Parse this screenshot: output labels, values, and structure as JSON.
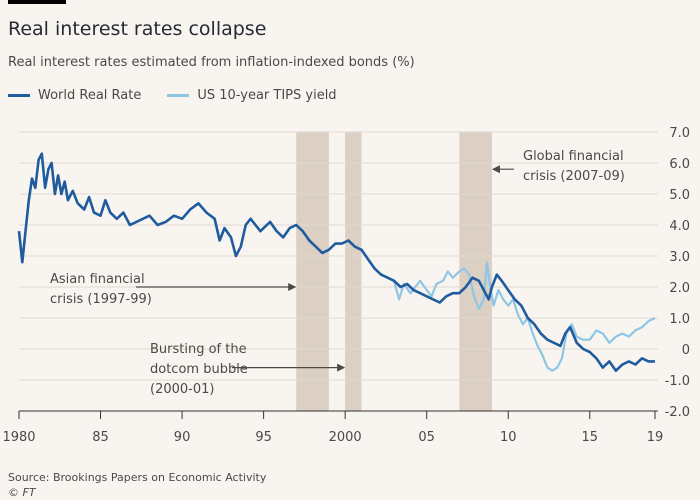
{
  "chart_data": {
    "type": "line",
    "title": "Real interest rates collapse",
    "subtitle": "Real interest rates estimated from inflation-indexed bonds (%)",
    "xlabel": "",
    "ylabel": "",
    "xlim": [
      1980,
      2019
    ],
    "ylim": [
      -2.0,
      7.0
    ],
    "x_ticks": [
      1980,
      1985,
      1990,
      1995,
      2000,
      2005,
      2010,
      2015,
      2019
    ],
    "x_tick_labels": [
      "1980",
      "85",
      "90",
      "95",
      "2000",
      "05",
      "10",
      "15",
      "19"
    ],
    "y_ticks": [
      -2,
      -1,
      0,
      1,
      2,
      3,
      4,
      5,
      6,
      7
    ],
    "y_tick_labels": [
      "-2.0",
      "-1.0",
      "0",
      "1.0",
      "2.0",
      "3.0",
      "4.0",
      "5.0",
      "6.0",
      "7.0"
    ],
    "grid": "horizontal",
    "legend_position": "top-left",
    "series": [
      {
        "name": "World Real Rate",
        "color": "#1f5b9e",
        "x": [
          1980.0,
          1980.2,
          1980.4,
          1980.6,
          1980.8,
          1981.0,
          1981.2,
          1981.4,
          1981.6,
          1981.8,
          1982.0,
          1982.2,
          1982.4,
          1982.6,
          1982.8,
          1983.0,
          1983.3,
          1983.6,
          1984.0,
          1984.3,
          1984.6,
          1985.0,
          1985.3,
          1985.6,
          1986.0,
          1986.4,
          1986.8,
          1987.2,
          1987.6,
          1988.0,
          1988.5,
          1989.0,
          1989.5,
          1990.0,
          1990.5,
          1991.0,
          1991.5,
          1992.0,
          1992.3,
          1992.6,
          1993.0,
          1993.3,
          1993.6,
          1993.9,
          1994.2,
          1994.5,
          1994.8,
          1995.0,
          1995.4,
          1995.8,
          1996.2,
          1996.6,
          1997.0,
          1997.4,
          1997.8,
          1998.2,
          1998.6,
          1999.0,
          1999.4,
          1999.8,
          2000.2,
          2000.6,
          2001.0,
          2001.4,
          2001.8,
          2002.2,
          2002.6,
          2003.0,
          2003.4,
          2003.8,
          2004.2,
          2004.6,
          2005.0,
          2005.4,
          2005.8,
          2006.2,
          2006.6,
          2007.0,
          2007.4,
          2007.8,
          2008.2,
          2008.5,
          2008.8,
          2009.0,
          2009.3,
          2009.6,
          2010.0,
          2010.4,
          2010.8,
          2011.2,
          2011.6,
          2012.0,
          2012.4,
          2012.8,
          2013.2,
          2013.5,
          2013.8,
          2014.2,
          2014.6,
          2015.0,
          2015.4,
          2015.8,
          2016.2,
          2016.6,
          2017.0,
          2017.4,
          2017.8,
          2018.2,
          2018.6,
          2019.0
        ],
        "values": [
          3.8,
          2.8,
          3.8,
          4.8,
          5.5,
          5.2,
          6.1,
          6.3,
          5.2,
          5.8,
          6.0,
          5.0,
          5.6,
          5.0,
          5.4,
          4.8,
          5.1,
          4.7,
          4.5,
          4.9,
          4.4,
          4.3,
          4.8,
          4.4,
          4.2,
          4.4,
          4.0,
          4.1,
          4.2,
          4.3,
          4.0,
          4.1,
          4.3,
          4.2,
          4.5,
          4.7,
          4.4,
          4.2,
          3.5,
          3.9,
          3.6,
          3.0,
          3.3,
          4.0,
          4.2,
          4.0,
          3.8,
          3.9,
          4.1,
          3.8,
          3.6,
          3.9,
          4.0,
          3.8,
          3.5,
          3.3,
          3.1,
          3.2,
          3.4,
          3.4,
          3.5,
          3.3,
          3.2,
          2.9,
          2.6,
          2.4,
          2.3,
          2.2,
          2.0,
          2.1,
          1.9,
          1.8,
          1.7,
          1.6,
          1.5,
          1.7,
          1.8,
          1.8,
          2.0,
          2.3,
          2.2,
          1.9,
          1.6,
          2.0,
          2.4,
          2.2,
          1.9,
          1.6,
          1.4,
          1.0,
          0.8,
          0.5,
          0.3,
          0.2,
          0.1,
          0.5,
          0.7,
          0.2,
          0.0,
          -0.1,
          -0.3,
          -0.6,
          -0.4,
          -0.7,
          -0.5,
          -0.4,
          -0.5,
          -0.3,
          -0.4,
          -0.4
        ]
      },
      {
        "name": "US 10-year TIPS yield",
        "color": "#8fc6e6",
        "x": [
          2003.0,
          2003.3,
          2003.6,
          2004.0,
          2004.3,
          2004.6,
          2005.0,
          2005.3,
          2005.6,
          2006.0,
          2006.3,
          2006.6,
          2007.0,
          2007.3,
          2007.6,
          2007.9,
          2008.2,
          2008.5,
          2008.7,
          2008.9,
          2009.1,
          2009.4,
          2009.7,
          2010.0,
          2010.3,
          2010.6,
          2010.9,
          2011.2,
          2011.5,
          2011.8,
          2012.1,
          2012.4,
          2012.7,
          2013.0,
          2013.3,
          2013.6,
          2013.9,
          2014.2,
          2014.6,
          2015.0,
          2015.4,
          2015.8,
          2016.2,
          2016.6,
          2017.0,
          2017.4,
          2017.8,
          2018.2,
          2018.6,
          2019.0
        ],
        "values": [
          2.2,
          1.6,
          2.1,
          1.8,
          2.0,
          2.2,
          1.9,
          1.7,
          2.1,
          2.2,
          2.5,
          2.3,
          2.5,
          2.6,
          2.4,
          1.7,
          1.3,
          1.6,
          2.8,
          2.0,
          1.4,
          1.9,
          1.6,
          1.4,
          1.6,
          1.1,
          0.8,
          1.0,
          0.5,
          0.1,
          -0.2,
          -0.6,
          -0.7,
          -0.6,
          -0.3,
          0.6,
          0.8,
          0.4,
          0.3,
          0.3,
          0.6,
          0.5,
          0.2,
          0.4,
          0.5,
          0.4,
          0.6,
          0.7,
          0.9,
          1.0
        ]
      }
    ],
    "shaded_periods": [
      {
        "start": 1997.0,
        "end": 1999.0
      },
      {
        "start": 2000.0,
        "end": 2001.0
      },
      {
        "start": 2007.0,
        "end": 2009.0
      }
    ],
    "annotations": [
      {
        "lines": [
          "Asian financial",
          "crisis (1997-99)"
        ],
        "arrow_to_x": 1997.0,
        "arrow_to_y": 2.0
      },
      {
        "lines": [
          "Bursting of the",
          "dotcom bubble",
          "(2000-01)"
        ],
        "arrow_to_x": 2000.0,
        "arrow_to_y": -0.6
      },
      {
        "lines": [
          "Global financial",
          "crisis (2007-09)"
        ],
        "arrow_to_x": 2009.0,
        "arrow_to_y": 5.8
      }
    ],
    "source": "Source: Brookings Papers on Economic Activity",
    "copyright": "© FT",
    "colors": {
      "shade": "#dccfc3",
      "grid": "#e1dad2",
      "axis": "#33302e"
    }
  }
}
